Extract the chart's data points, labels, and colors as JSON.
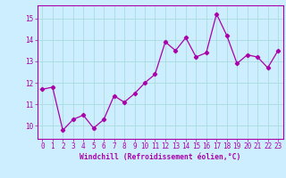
{
  "x": [
    0,
    1,
    2,
    3,
    4,
    5,
    6,
    7,
    8,
    9,
    10,
    11,
    12,
    13,
    14,
    15,
    16,
    17,
    18,
    19,
    20,
    21,
    22,
    23
  ],
  "y": [
    11.7,
    11.8,
    9.8,
    10.3,
    10.5,
    9.9,
    10.3,
    11.4,
    11.1,
    11.5,
    12.0,
    12.4,
    13.9,
    13.5,
    14.1,
    13.2,
    13.4,
    15.2,
    14.2,
    12.9,
    13.3,
    13.2,
    12.7,
    13.5
  ],
  "line_color": "#aa00aa",
  "marker": "D",
  "marker_size": 2.2,
  "bg_color": "#cceeff",
  "grid_color": "#aadddd",
  "ylabel": "",
  "xlabel": "Windchill (Refroidissement éolien,°C)",
  "yticks": [
    10,
    11,
    12,
    13,
    14,
    15
  ],
  "xticks": [
    0,
    1,
    2,
    3,
    4,
    5,
    6,
    7,
    8,
    9,
    10,
    11,
    12,
    13,
    14,
    15,
    16,
    17,
    18,
    19,
    20,
    21,
    22,
    23
  ],
  "ylim": [
    9.4,
    15.6
  ],
  "xlim": [
    -0.5,
    23.5
  ],
  "tick_color": "#aa00aa",
  "label_color": "#aa00aa",
  "label_fontsize": 5.8,
  "tick_fontsize": 5.5,
  "spine_color": "#aa00aa"
}
